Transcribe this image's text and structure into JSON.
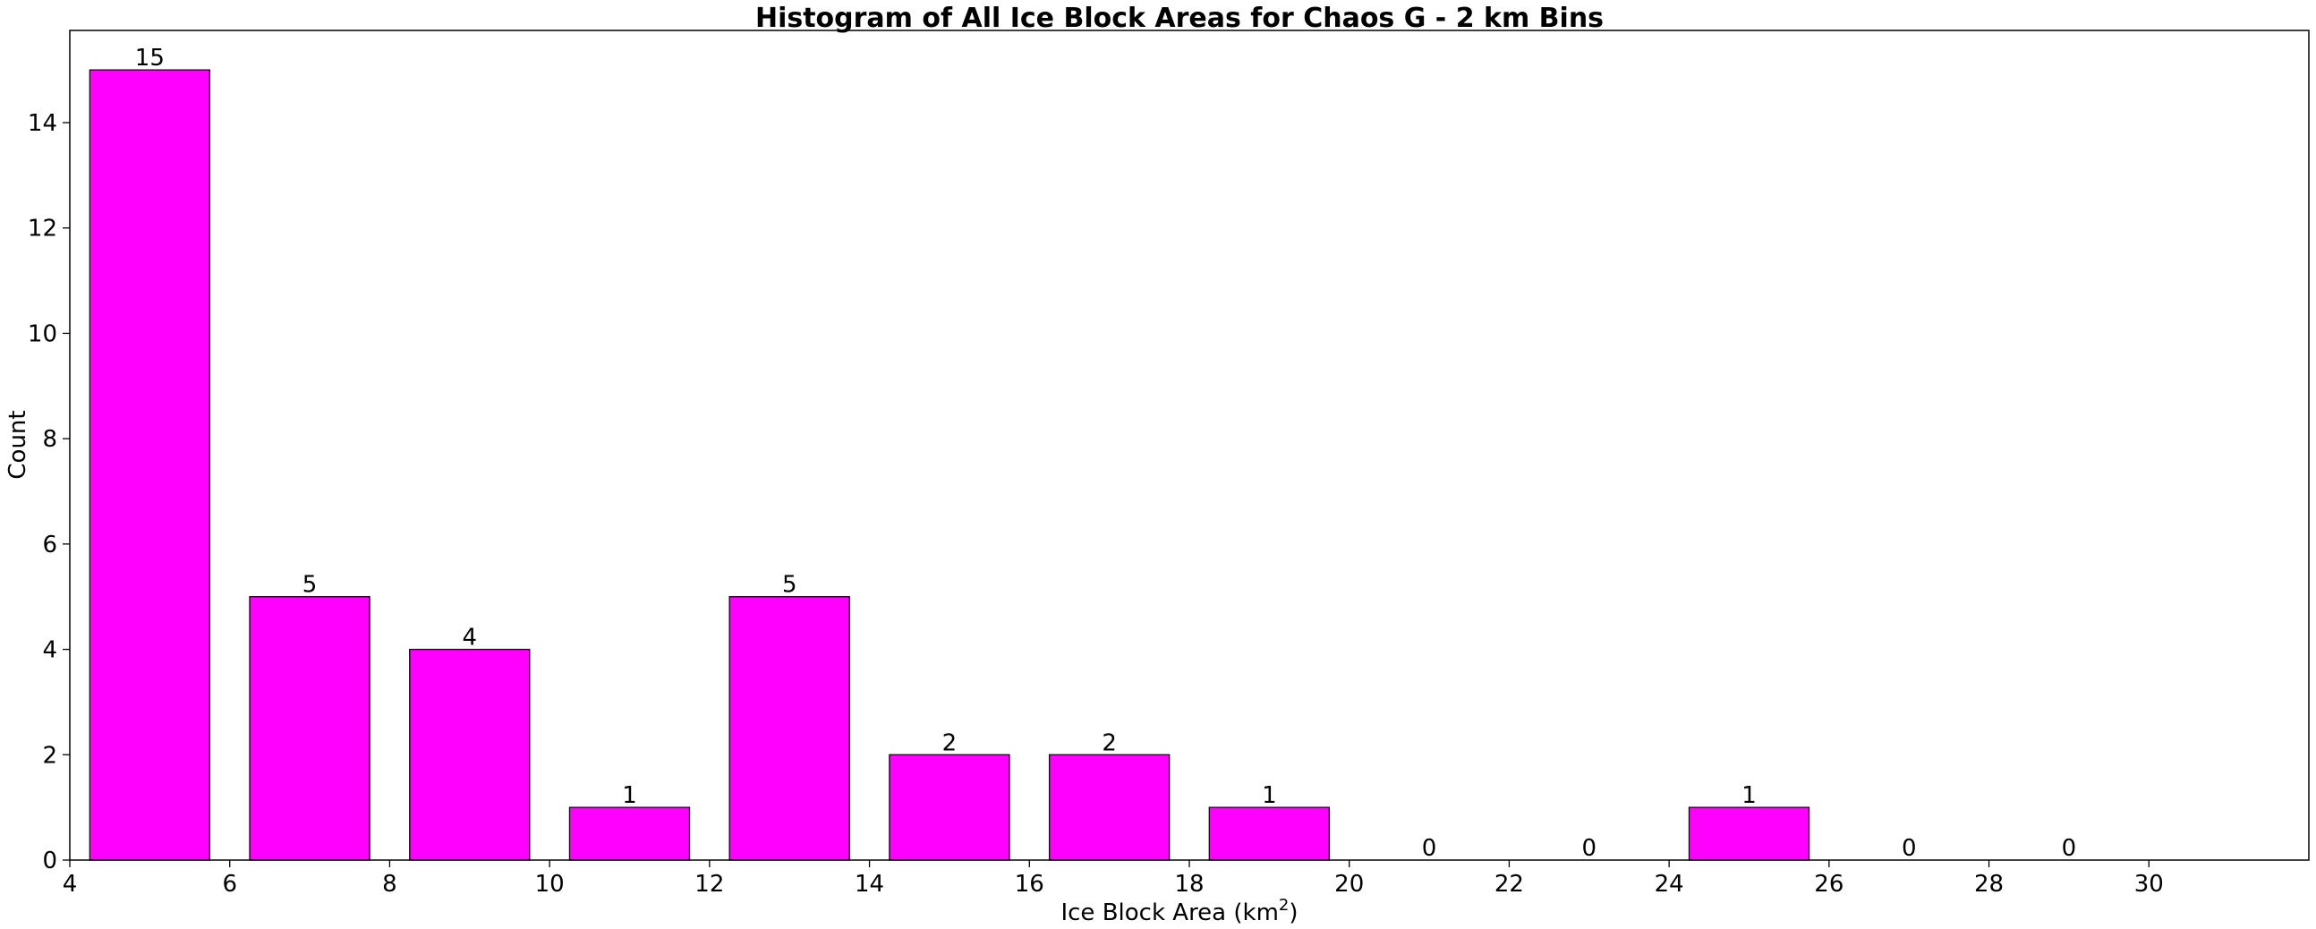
{
  "chart_data": {
    "type": "bar",
    "title": "Histogram of All Ice Block Areas for Chaos G - 2 km Bins",
    "xlabel": "Ice Block Area (km",
    "xlabel_sup": "2",
    "xlabel_suffix": ")",
    "ylabel": "Count",
    "bar_color": "#ff00ff",
    "edge_color": "#000000",
    "xlim": [
      4,
      32
    ],
    "ylim": [
      0,
      15.75
    ],
    "xticks": [
      4,
      6,
      8,
      10,
      12,
      14,
      16,
      18,
      20,
      22,
      24,
      26,
      28,
      30
    ],
    "yticks": [
      0,
      2,
      4,
      6,
      8,
      10,
      12,
      14
    ],
    "bins": [
      {
        "start": 4,
        "end": 6,
        "value": 15
      },
      {
        "start": 6,
        "end": 8,
        "value": 5
      },
      {
        "start": 8,
        "end": 10,
        "value": 4
      },
      {
        "start": 10,
        "end": 12,
        "value": 1
      },
      {
        "start": 12,
        "end": 14,
        "value": 5
      },
      {
        "start": 14,
        "end": 16,
        "value": 2
      },
      {
        "start": 16,
        "end": 18,
        "value": 2
      },
      {
        "start": 18,
        "end": 20,
        "value": 1
      },
      {
        "start": 20,
        "end": 22,
        "value": 0
      },
      {
        "start": 22,
        "end": 24,
        "value": 0
      },
      {
        "start": 24,
        "end": 26,
        "value": 1
      },
      {
        "start": 26,
        "end": 28,
        "value": 0
      },
      {
        "start": 28,
        "end": 30,
        "value": 0
      }
    ],
    "grid": false,
    "legend": "none"
  }
}
